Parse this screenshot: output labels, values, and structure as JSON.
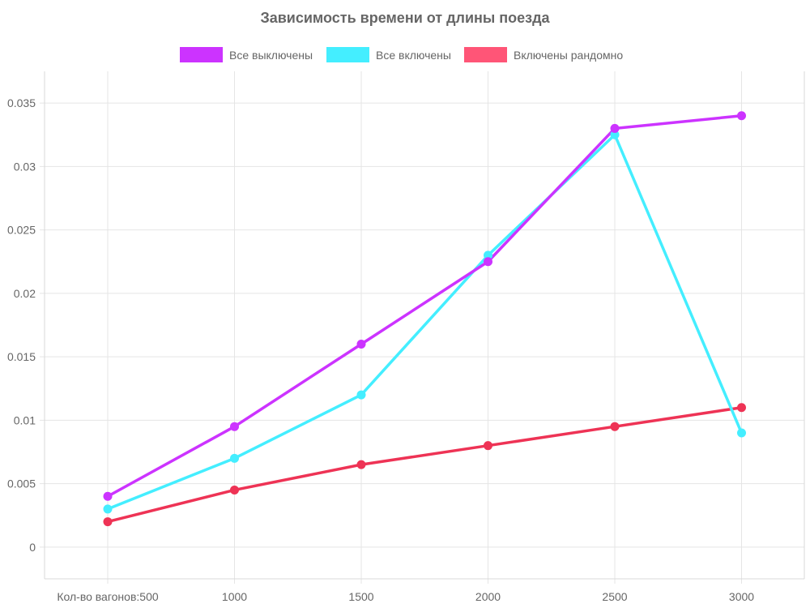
{
  "chart_data": {
    "type": "line",
    "title": "Зависимость времени от длины поезда",
    "categories": [
      "Кол-во вагонов:500",
      "1000",
      "1500",
      "2000",
      "2500",
      "3000"
    ],
    "ylim": [
      -0.0025,
      0.0375
    ],
    "yticks": [
      "0",
      "0.005",
      "0.01",
      "0.015",
      "0.02",
      "0.025",
      "0.03",
      "0.035"
    ],
    "ytick_values": [
      0,
      0.005,
      0.01,
      0.015,
      0.02,
      0.025,
      0.03,
      0.035
    ],
    "grid": true,
    "legend_position": "top",
    "series": [
      {
        "name": "Все выключены",
        "color": "#cc33ff",
        "values": [
          0.004,
          0.0095,
          0.016,
          0.0225,
          0.033,
          0.034
        ]
      },
      {
        "name": "Все включены",
        "color": "#44eeff",
        "values": [
          0.003,
          0.007,
          0.012,
          0.023,
          0.0325,
          0.009
        ]
      },
      {
        "name": "Включены рандомно",
        "color": "#ff5577",
        "line_color": "#ee3355",
        "values": [
          0.002,
          0.0045,
          0.0065,
          0.008,
          0.0095,
          0.011
        ]
      }
    ]
  }
}
